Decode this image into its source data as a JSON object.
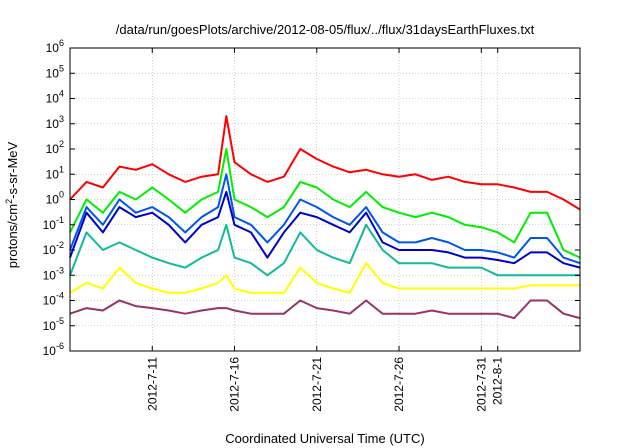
{
  "chart_data": {
    "type": "line",
    "title": "/data/run/goesPlots/archive/2012-08-05/flux/../flux/31daysEarthFluxes.txt",
    "xlabel": "Coordinated Universal Time (UTC)",
    "ylabel": {
      "base": "protons/cm",
      "sup": "2",
      "rest": "-s-sr-MeV"
    },
    "xlim": [
      "2012-07-06",
      "2012-08-06"
    ],
    "x_ticks": [
      "2012-7-11",
      "2012-7-16",
      "2012-7-21",
      "2012-7-26",
      "2012-7-31",
      "2012-8-1"
    ],
    "y_scale": "log",
    "ylim": [
      1e-06,
      1000000.0
    ],
    "y_ticks": [
      {
        "value": 1e-06,
        "base": "10",
        "exp": "-6"
      },
      {
        "value": 1e-05,
        "base": "10",
        "exp": "-5"
      },
      {
        "value": 0.0001,
        "base": "10",
        "exp": "-4"
      },
      {
        "value": 0.001,
        "base": "10",
        "exp": "-3"
      },
      {
        "value": 0.01,
        "base": "10",
        "exp": "-2"
      },
      {
        "value": 0.1,
        "base": "10",
        "exp": "-1"
      },
      {
        "value": 1,
        "base": "10",
        "exp": "0"
      },
      {
        "value": 10,
        "base": "10",
        "exp": "1"
      },
      {
        "value": 100,
        "base": "10",
        "exp": "2"
      },
      {
        "value": 1000,
        "base": "10",
        "exp": "3"
      },
      {
        "value": 10000,
        "base": "10",
        "exp": "4"
      },
      {
        "value": 100000,
        "base": "10",
        "exp": "5"
      },
      {
        "value": 1000000,
        "base": "10",
        "exp": "6"
      }
    ],
    "grid": true,
    "series": [
      {
        "color": "#ff0000",
        "x": [
          "2012-07-06",
          "2012-07-07",
          "2012-07-08",
          "2012-07-09",
          "2012-07-10",
          "2012-07-11",
          "2012-07-12",
          "2012-07-13",
          "2012-07-14",
          "2012-07-15",
          "2012-07-15T12:00",
          "2012-07-16",
          "2012-07-17",
          "2012-07-18",
          "2012-07-19",
          "2012-07-20",
          "2012-07-21",
          "2012-07-22",
          "2012-07-23",
          "2012-07-24",
          "2012-07-25",
          "2012-07-26",
          "2012-07-27",
          "2012-07-28",
          "2012-07-29",
          "2012-07-30",
          "2012-07-31",
          "2012-08-01",
          "2012-08-02",
          "2012-08-03",
          "2012-08-04",
          "2012-08-05",
          "2012-08-06"
        ],
        "values": [
          1,
          5,
          3,
          20,
          15,
          25,
          10,
          5,
          8,
          10,
          2000,
          30,
          10,
          5,
          8,
          100,
          40,
          20,
          12,
          15,
          10,
          8,
          10,
          6,
          8,
          5,
          4,
          4,
          3,
          2,
          2,
          1,
          0.4
        ]
      },
      {
        "color": "#00ee00",
        "x": [
          "2012-07-06",
          "2012-07-07",
          "2012-07-08",
          "2012-07-09",
          "2012-07-10",
          "2012-07-11",
          "2012-07-12",
          "2012-07-13",
          "2012-07-14",
          "2012-07-15",
          "2012-07-15T12:00",
          "2012-07-16",
          "2012-07-17",
          "2012-07-18",
          "2012-07-19",
          "2012-07-20",
          "2012-07-21",
          "2012-07-22",
          "2012-07-23",
          "2012-07-24",
          "2012-07-25",
          "2012-07-26",
          "2012-07-27",
          "2012-07-28",
          "2012-07-29",
          "2012-07-30",
          "2012-07-31",
          "2012-08-01",
          "2012-08-02",
          "2012-08-03",
          "2012-08-04",
          "2012-08-05",
          "2012-08-06"
        ],
        "values": [
          0.05,
          1,
          0.3,
          2,
          1,
          3,
          1,
          0.3,
          1,
          2,
          100,
          1,
          0.5,
          0.2,
          0.5,
          5,
          3,
          1,
          0.5,
          2,
          0.5,
          0.3,
          0.2,
          0.3,
          0.2,
          0.1,
          0.08,
          0.05,
          0.02,
          0.3,
          0.3,
          0.01,
          0.005
        ]
      },
      {
        "color": "#0055ee",
        "x": [
          "2012-07-06",
          "2012-07-07",
          "2012-07-08",
          "2012-07-09",
          "2012-07-10",
          "2012-07-11",
          "2012-07-12",
          "2012-07-13",
          "2012-07-14",
          "2012-07-15",
          "2012-07-15T12:00",
          "2012-07-16",
          "2012-07-17",
          "2012-07-18",
          "2012-07-19",
          "2012-07-20",
          "2012-07-21",
          "2012-07-22",
          "2012-07-23",
          "2012-07-24",
          "2012-07-25",
          "2012-07-26",
          "2012-07-27",
          "2012-07-28",
          "2012-07-29",
          "2012-07-30",
          "2012-07-31",
          "2012-08-01",
          "2012-08-02",
          "2012-08-03",
          "2012-08-04",
          "2012-08-05",
          "2012-08-06"
        ],
        "values": [
          0.01,
          0.5,
          0.1,
          1,
          0.3,
          0.5,
          0.2,
          0.05,
          0.2,
          0.5,
          10,
          0.2,
          0.1,
          0.02,
          0.1,
          1,
          0.5,
          0.2,
          0.1,
          0.5,
          0.05,
          0.02,
          0.02,
          0.03,
          0.02,
          0.01,
          0.01,
          0.008,
          0.005,
          0.03,
          0.03,
          0.005,
          0.003
        ]
      },
      {
        "color": "#0000cc",
        "x": [
          "2012-07-06",
          "2012-07-07",
          "2012-07-08",
          "2012-07-09",
          "2012-07-10",
          "2012-07-11",
          "2012-07-12",
          "2012-07-13",
          "2012-07-14",
          "2012-07-15",
          "2012-07-15T12:00",
          "2012-07-16",
          "2012-07-17",
          "2012-07-18",
          "2012-07-19",
          "2012-07-20",
          "2012-07-21",
          "2012-07-22",
          "2012-07-23",
          "2012-07-24",
          "2012-07-25",
          "2012-07-26",
          "2012-07-27",
          "2012-07-28",
          "2012-07-29",
          "2012-07-30",
          "2012-07-31",
          "2012-08-01",
          "2012-08-02",
          "2012-08-03",
          "2012-08-04",
          "2012-08-05",
          "2012-08-06"
        ],
        "values": [
          0.005,
          0.3,
          0.05,
          0.5,
          0.2,
          0.3,
          0.1,
          0.02,
          0.1,
          0.2,
          2,
          0.1,
          0.05,
          0.005,
          0.05,
          0.3,
          0.2,
          0.1,
          0.05,
          0.3,
          0.02,
          0.01,
          0.01,
          0.01,
          0.008,
          0.005,
          0.005,
          0.004,
          0.003,
          0.008,
          0.008,
          0.003,
          0.002
        ]
      },
      {
        "color": "#11bb99",
        "x": [
          "2012-07-06",
          "2012-07-07",
          "2012-07-08",
          "2012-07-09",
          "2012-07-10",
          "2012-07-11",
          "2012-07-12",
          "2012-07-13",
          "2012-07-14",
          "2012-07-15",
          "2012-07-15T12:00",
          "2012-07-16",
          "2012-07-17",
          "2012-07-18",
          "2012-07-19",
          "2012-07-20",
          "2012-07-21",
          "2012-07-22",
          "2012-07-23",
          "2012-07-24",
          "2012-07-25",
          "2012-07-26",
          "2012-07-27",
          "2012-07-28",
          "2012-07-29",
          "2012-07-30",
          "2012-07-31",
          "2012-08-01",
          "2012-08-02",
          "2012-08-03",
          "2012-08-04",
          "2012-08-05",
          "2012-08-06"
        ],
        "values": [
          0.001,
          0.05,
          0.01,
          0.02,
          0.01,
          0.005,
          0.003,
          0.002,
          0.005,
          0.01,
          0.1,
          0.005,
          0.003,
          0.001,
          0.003,
          0.05,
          0.01,
          0.005,
          0.003,
          0.1,
          0.01,
          0.003,
          0.003,
          0.003,
          0.002,
          0.002,
          0.002,
          0.001,
          0.001,
          0.001,
          0.001,
          0.001,
          0.001
        ]
      },
      {
        "color": "#ffff00",
        "x": [
          "2012-07-06",
          "2012-07-07",
          "2012-07-08",
          "2012-07-09",
          "2012-07-10",
          "2012-07-11",
          "2012-07-12",
          "2012-07-13",
          "2012-07-14",
          "2012-07-15",
          "2012-07-15T12:00",
          "2012-07-16",
          "2012-07-17",
          "2012-07-18",
          "2012-07-19",
          "2012-07-20",
          "2012-07-21",
          "2012-07-22",
          "2012-07-23",
          "2012-07-24",
          "2012-07-25",
          "2012-07-26",
          "2012-07-27",
          "2012-07-28",
          "2012-07-29",
          "2012-07-30",
          "2012-07-31",
          "2012-08-01",
          "2012-08-02",
          "2012-08-03",
          "2012-08-04",
          "2012-08-05",
          "2012-08-06"
        ],
        "values": [
          0.0002,
          0.0005,
          0.0003,
          0.002,
          0.0005,
          0.0003,
          0.0002,
          0.0002,
          0.0003,
          0.0005,
          0.001,
          0.0003,
          0.0002,
          0.0002,
          0.0002,
          0.002,
          0.0005,
          0.0003,
          0.0002,
          0.003,
          0.0005,
          0.0003,
          0.0003,
          0.0003,
          0.0003,
          0.0003,
          0.0003,
          0.0003,
          0.0003,
          0.0004,
          0.0004,
          0.0004,
          0.0004
        ]
      },
      {
        "color": "#993366",
        "x": [
          "2012-07-06",
          "2012-07-07",
          "2012-07-08",
          "2012-07-09",
          "2012-07-10",
          "2012-07-11",
          "2012-07-12",
          "2012-07-13",
          "2012-07-14",
          "2012-07-15",
          "2012-07-15T12:00",
          "2012-07-16",
          "2012-07-17",
          "2012-07-18",
          "2012-07-19",
          "2012-07-20",
          "2012-07-21",
          "2012-07-22",
          "2012-07-23",
          "2012-07-24",
          "2012-07-25",
          "2012-07-26",
          "2012-07-27",
          "2012-07-28",
          "2012-07-29",
          "2012-07-30",
          "2012-07-31",
          "2012-08-01",
          "2012-08-02",
          "2012-08-03",
          "2012-08-04",
          "2012-08-05",
          "2012-08-06"
        ],
        "values": [
          3e-05,
          5e-05,
          4e-05,
          0.0001,
          6e-05,
          5e-05,
          4e-05,
          3e-05,
          4e-05,
          5e-05,
          5e-05,
          4e-05,
          3e-05,
          3e-05,
          3e-05,
          0.0001,
          5e-05,
          4e-05,
          3e-05,
          0.0001,
          3e-05,
          3e-05,
          3e-05,
          4e-05,
          3e-05,
          3e-05,
          3e-05,
          3e-05,
          2e-05,
          0.0001,
          0.0001,
          3e-05,
          2e-05
        ]
      }
    ]
  }
}
